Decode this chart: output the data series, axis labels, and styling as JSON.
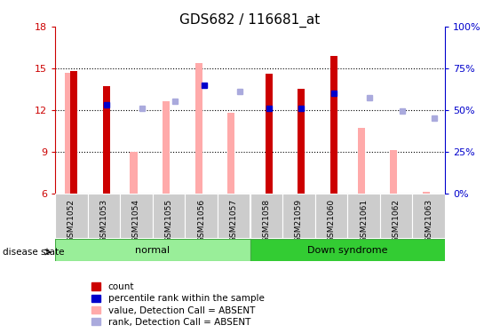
{
  "title": "GDS682 / 116681_at",
  "samples": [
    "GSM21052",
    "GSM21053",
    "GSM21054",
    "GSM21055",
    "GSM21056",
    "GSM21057",
    "GSM21058",
    "GSM21059",
    "GSM21060",
    "GSM21061",
    "GSM21062",
    "GSM21063"
  ],
  "ylim_left": [
    6,
    18
  ],
  "ylim_right": [
    0,
    100
  ],
  "yticks_left": [
    6,
    9,
    12,
    15,
    18
  ],
  "yticks_right": [
    0,
    25,
    50,
    75,
    100
  ],
  "red_bars": [
    14.8,
    13.7,
    null,
    null,
    null,
    null,
    14.6,
    13.5,
    15.9,
    null,
    null,
    null
  ],
  "blue_dots": [
    null,
    12.4,
    null,
    null,
    13.8,
    null,
    12.1,
    12.1,
    13.2,
    null,
    null,
    null
  ],
  "pink_bars": [
    14.7,
    null,
    9.0,
    12.6,
    15.4,
    11.8,
    null,
    null,
    null,
    10.7,
    9.1,
    6.1
  ],
  "lavender_dots": [
    null,
    null,
    12.1,
    12.6,
    null,
    13.3,
    null,
    null,
    null,
    12.9,
    11.9,
    11.4
  ],
  "red_color": "#cc0000",
  "blue_color": "#0000cc",
  "pink_color": "#ffaaaa",
  "lavender_color": "#aaaadd",
  "tick_color_left": "#cc0000",
  "tick_color_right": "#0000cc",
  "title_fontsize": 11,
  "bottom_label": "disease state",
  "bottom_normal": "normal",
  "bottom_down": "Down syndrome",
  "normal_color": "#99ee99",
  "down_color": "#33cc33"
}
